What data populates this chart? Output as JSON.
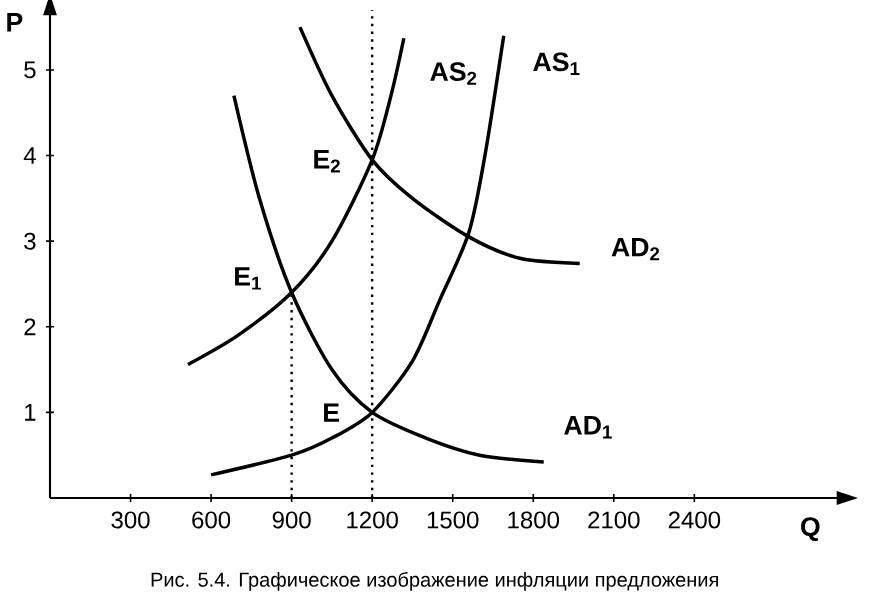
{
  "chart_data": {
    "type": "line",
    "xlabel": "Q",
    "ylabel": "P",
    "xlim": [
      0,
      2950
    ],
    "ylim": [
      0,
      5.7
    ],
    "xticks": [
      300,
      600,
      900,
      1200,
      1500,
      1800,
      2100,
      2400
    ],
    "yticks": [
      1,
      2,
      3,
      4,
      5
    ],
    "marker": "none",
    "series": [
      {
        "color": "#000000",
        "line_style": "solid",
        "x": [
          600,
          900,
          1050,
          1200,
          1350,
          1450,
          1560,
          1620,
          1690
        ],
        "values": [
          0.27,
          0.5,
          0.7,
          1.0,
          1.6,
          2.3,
          3.1,
          4.0,
          5.4
        ]
      },
      {
        "color": "#000000",
        "line_style": "solid",
        "x": [
          514,
          700,
          900,
          1050,
          1200,
          1270,
          1318
        ],
        "values": [
          1.56,
          1.9,
          2.4,
          3.0,
          3.95,
          4.7,
          5.37
        ]
      },
      {
        "color": "#000000",
        "line_style": "solid",
        "x": [
          685,
          780,
          900,
          1050,
          1200,
          1400,
          1600,
          1839
        ],
        "values": [
          4.7,
          3.5,
          2.4,
          1.5,
          1.0,
          0.7,
          0.5,
          0.42
        ]
      },
      {
        "color": "#000000",
        "line_style": "solid",
        "x": [
          931,
          1050,
          1200,
          1350,
          1560,
          1750,
          1973
        ],
        "values": [
          5.5,
          4.7,
          3.95,
          3.5,
          3.05,
          2.8,
          2.74
        ]
      },
      {
        "color": "#000000",
        "line_style": "dotted",
        "x": [
          900,
          900
        ],
        "values": [
          0,
          2.4
        ]
      }
    ],
    "ref_lines": [
      {
        "axis": "x",
        "value": 1200,
        "line_style": "dotted",
        "color": "#000000"
      }
    ],
    "annotations": [
      "AS$_{1}$",
      "AS$_{2}$",
      "AD$_{2}$",
      "AD$_{1}$",
      "E",
      "E$_{1}$",
      "E$_{2}$",
      "Рис. 5.4. Графическое изображение инфляции предложения"
    ]
  }
}
